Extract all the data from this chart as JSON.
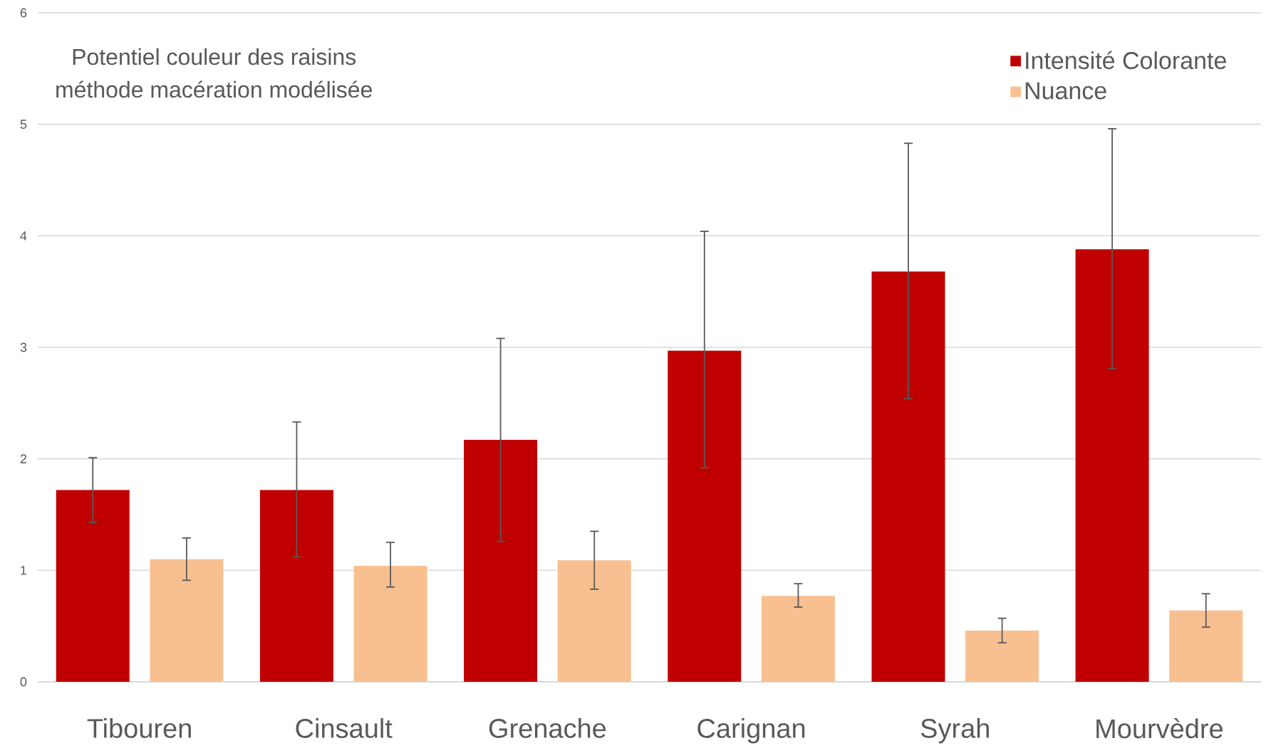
{
  "chart_data": {
    "type": "bar",
    "title": "Potentiel couleur des raisins",
    "subtitle": "méthode macération modélisée",
    "categories": [
      "Tibouren",
      "Cinsault",
      "Grenache",
      "Carignan",
      "Syrah",
      "Mourvèdre"
    ],
    "series": [
      {
        "name": "Intensité Colorante",
        "color": "#c00000",
        "values": [
          1.72,
          1.72,
          2.17,
          2.97,
          3.68,
          3.88
        ],
        "errors": [
          [
            1.43,
            2.01
          ],
          [
            1.12,
            2.33
          ],
          [
            1.26,
            3.08
          ],
          [
            1.92,
            4.04
          ],
          [
            2.54,
            4.83
          ],
          [
            2.81,
            4.96
          ]
        ]
      },
      {
        "name": "Nuance",
        "color": "#f8c090",
        "values": [
          1.1,
          1.04,
          1.09,
          0.77,
          0.46,
          0.64
        ],
        "errors": [
          [
            0.91,
            1.29
          ],
          [
            0.85,
            1.25
          ],
          [
            0.83,
            1.35
          ],
          [
            0.67,
            0.88
          ],
          [
            0.35,
            0.57
          ],
          [
            0.49,
            0.79
          ]
        ]
      }
    ],
    "ylim": [
      0,
      6
    ],
    "yticks": [
      0,
      1,
      2,
      3,
      4,
      5,
      6
    ],
    "grid": "y",
    "legend": "top right"
  }
}
